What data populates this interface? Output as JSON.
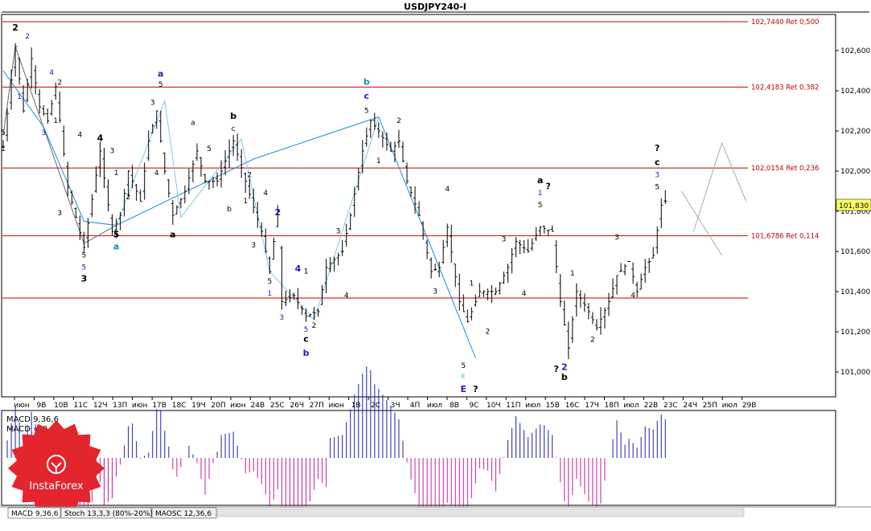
{
  "window_title": "USDJPY240-I",
  "price_labels": [
    "102,600",
    "102,400",
    "102,200",
    "102,000",
    "101,800",
    "101,600",
    "101,400",
    "101,200",
    "101,000"
  ],
  "current_price": "101,830",
  "fib_levels": [
    {
      "price": 102.744,
      "label": "102,7440 Ret 0,500"
    },
    {
      "price": 102.4183,
      "label": "102,4183 Ret 0,382"
    },
    {
      "price": 102.0154,
      "label": "102,0154 Ret 0,236"
    },
    {
      "price": 101.6786,
      "label": "101,6786 Ret 0,114"
    }
  ],
  "time_labels": [
    "июн",
    "9В",
    "10В",
    "11С",
    "12Ч",
    "13П",
    "июн",
    "17В",
    "18С",
    "19Ч",
    "20П",
    "июн",
    "24В",
    "25С",
    "26Ч",
    "27П",
    "июн",
    "1В",
    "2С",
    "3Ч",
    "4П",
    "июл",
    "8В",
    "9С",
    "10Ч",
    "11П",
    "июл",
    "15В",
    "16С",
    "17Ч",
    "18П",
    "июл",
    "22В",
    "23С",
    "24Ч",
    "25П",
    "июл",
    "29В"
  ],
  "macd": {
    "line1": "MACD 9,36,6",
    "line2": "MACD = 0,07"
  },
  "tabs": [
    "MACD 9,36,6",
    "Stoch 13,3,3 (80%-20%)",
    "MAOSC 12,36,6"
  ],
  "logo": {
    "text": "InstaForex",
    "color": "#e3262e"
  },
  "colors": {
    "fib_line": "#c00000",
    "wave_black": "#000000",
    "wave_blue": "#1f1fb4",
    "wave_cyan": "#0a8fbf",
    "macd_pos": "#1f1fb4",
    "macd_neg": "#c020a0"
  },
  "wave_labels": [
    {
      "t": 0,
      "p": 102.18,
      "text": "5",
      "color": "black"
    },
    {
      "t": 0,
      "p": 102.1,
      "text": "1",
      "color": "black"
    },
    {
      "t": 3,
      "p": 102.7,
      "text": "2",
      "color": "black",
      "big": true
    },
    {
      "t": 6,
      "p": 102.66,
      "text": "2",
      "color": "blue"
    },
    {
      "t": 4,
      "p": 102.36,
      "text": "1",
      "color": "blue"
    },
    {
      "t": 12,
      "p": 102.48,
      "text": "4",
      "color": "blue"
    },
    {
      "t": 14,
      "p": 102.43,
      "text": "2",
      "color": "black"
    },
    {
      "t": 13,
      "p": 102.24,
      "text": "1",
      "color": "black"
    },
    {
      "t": 10,
      "p": 102.18,
      "text": "3",
      "color": "blue"
    },
    {
      "t": 19,
      "p": 102.17,
      "text": "4",
      "color": "black"
    },
    {
      "t": 14,
      "p": 101.78,
      "text": "3",
      "color": "black"
    },
    {
      "t": 20,
      "p": 101.57,
      "text": "5",
      "color": "black"
    },
    {
      "t": 20,
      "p": 101.51,
      "text": "5",
      "color": "blue"
    },
    {
      "t": 20,
      "p": 101.45,
      "text": "3",
      "color": "black",
      "big": true
    },
    {
      "t": 24,
      "p": 102.15,
      "text": "4",
      "color": "black",
      "big": true
    },
    {
      "t": 27,
      "p": 102.09,
      "text": "3",
      "color": "black"
    },
    {
      "t": 28,
      "p": 101.98,
      "text": "1",
      "color": "black"
    },
    {
      "t": 31,
      "p": 101.86,
      "text": "2",
      "color": "black"
    },
    {
      "t": 28,
      "p": 101.67,
      "text": "5",
      "color": "black",
      "big": true
    },
    {
      "t": 28,
      "p": 101.61,
      "text": "a",
      "color": "cyan",
      "big": true
    },
    {
      "t": 37,
      "p": 102.33,
      "text": "3",
      "color": "black"
    },
    {
      "t": 39,
      "p": 102.42,
      "text": "5",
      "color": "black"
    },
    {
      "t": 39,
      "p": 102.47,
      "text": "a",
      "color": "blue",
      "big": true
    },
    {
      "t": 38,
      "p": 101.98,
      "text": "4",
      "color": "black"
    },
    {
      "t": 42,
      "p": 101.67,
      "text": "a",
      "color": "black",
      "big": true
    },
    {
      "t": 47,
      "p": 102.23,
      "text": "a",
      "color": "black"
    },
    {
      "t": 51,
      "p": 102.1,
      "text": "5",
      "color": "black"
    },
    {
      "t": 57,
      "p": 102.2,
      "text": "c",
      "color": "black"
    },
    {
      "t": 57,
      "p": 102.26,
      "text": "b",
      "color": "black",
      "big": true
    },
    {
      "t": 56,
      "p": 101.8,
      "text": "b",
      "color": "black"
    },
    {
      "t": 60,
      "p": 101.84,
      "text": "1",
      "color": "black"
    },
    {
      "t": 61,
      "p": 101.97,
      "text": "2",
      "color": "black"
    },
    {
      "t": 65,
      "p": 101.88,
      "text": "4",
      "color": "black"
    },
    {
      "t": 62,
      "p": 101.62,
      "text": "3",
      "color": "black"
    },
    {
      "t": 68,
      "p": 101.78,
      "text": "2",
      "color": "blue",
      "big": true
    },
    {
      "t": 66,
      "p": 101.44,
      "text": "5",
      "color": "black"
    },
    {
      "t": 66,
      "p": 101.38,
      "text": "1",
      "color": "blue"
    },
    {
      "t": 69,
      "p": 101.26,
      "text": "3",
      "color": "blue"
    },
    {
      "t": 73,
      "p": 101.5,
      "text": "4",
      "color": "blue",
      "big": true
    },
    {
      "t": 75,
      "p": 101.49,
      "text": "1",
      "color": "black"
    },
    {
      "t": 77,
      "p": 101.22,
      "text": "2",
      "color": "black"
    },
    {
      "t": 75,
      "p": 101.2,
      "text": "5",
      "color": "blue"
    },
    {
      "t": 75,
      "p": 101.15,
      "text": "c",
      "color": "black",
      "big": true
    },
    {
      "t": 75,
      "p": 101.08,
      "text": "b",
      "color": "blue",
      "big": true
    },
    {
      "t": 83,
      "p": 101.69,
      "text": "3",
      "color": "black"
    },
    {
      "t": 85,
      "p": 101.37,
      "text": "4",
      "color": "black"
    },
    {
      "t": 90,
      "p": 102.43,
      "text": "b",
      "color": "cyan",
      "big": true
    },
    {
      "t": 90,
      "p": 102.36,
      "text": "c",
      "color": "blue",
      "big": true
    },
    {
      "t": 90,
      "p": 102.29,
      "text": "5",
      "color": "black"
    },
    {
      "t": 93,
      "p": 102.04,
      "text": "1",
      "color": "black"
    },
    {
      "t": 98,
      "p": 102.24,
      "text": "2",
      "color": "black"
    },
    {
      "t": 107,
      "p": 101.39,
      "text": "3",
      "color": "black"
    },
    {
      "t": 110,
      "p": 101.9,
      "text": "4",
      "color": "black"
    },
    {
      "t": 114,
      "p": 101.02,
      "text": "5",
      "color": "black"
    },
    {
      "t": 114,
      "p": 100.97,
      "text": "c",
      "color": "cyan"
    },
    {
      "t": 114,
      "p": 100.9,
      "text": "E",
      "color": "blue",
      "big": true
    },
    {
      "t": 117,
      "p": 100.9,
      "text": "?",
      "color": "black",
      "big": true
    },
    {
      "t": 116,
      "p": 101.43,
      "text": "1",
      "color": "black"
    },
    {
      "t": 120,
      "p": 101.19,
      "text": "2",
      "color": "black"
    },
    {
      "t": 124,
      "p": 101.65,
      "text": "3",
      "color": "black"
    },
    {
      "t": 129,
      "p": 101.38,
      "text": "4",
      "color": "black"
    },
    {
      "t": 133,
      "p": 101.94,
      "text": "a",
      "color": "black",
      "big": true
    },
    {
      "t": 133,
      "p": 101.88,
      "text": "1",
      "color": "blue"
    },
    {
      "t": 135,
      "p": 101.91,
      "text": "?",
      "color": "black",
      "big": true
    },
    {
      "t": 133,
      "p": 101.82,
      "text": "5",
      "color": "black"
    },
    {
      "t": 141,
      "p": 101.48,
      "text": "1",
      "color": "black"
    },
    {
      "t": 146,
      "p": 101.15,
      "text": "2",
      "color": "black"
    },
    {
      "t": 139,
      "p": 101.01,
      "text": "2",
      "color": "blue",
      "big": true
    },
    {
      "t": 137,
      "p": 101.0,
      "text": "?",
      "color": "black",
      "big": true
    },
    {
      "t": 139,
      "p": 100.96,
      "text": "b",
      "color": "black",
      "big": true
    },
    {
      "t": 152,
      "p": 101.66,
      "text": "3",
      "color": "black"
    },
    {
      "t": 156,
      "p": 101.37,
      "text": "4",
      "color": "black"
    },
    {
      "t": 162,
      "p": 102.1,
      "text": "?",
      "color": "black",
      "big": true
    },
    {
      "t": 162,
      "p": 102.03,
      "text": "c",
      "color": "black",
      "big": true
    },
    {
      "t": 162,
      "p": 101.97,
      "text": "3",
      "color": "blue"
    },
    {
      "t": 162,
      "p": 101.91,
      "text": "5",
      "color": "black"
    }
  ]
}
